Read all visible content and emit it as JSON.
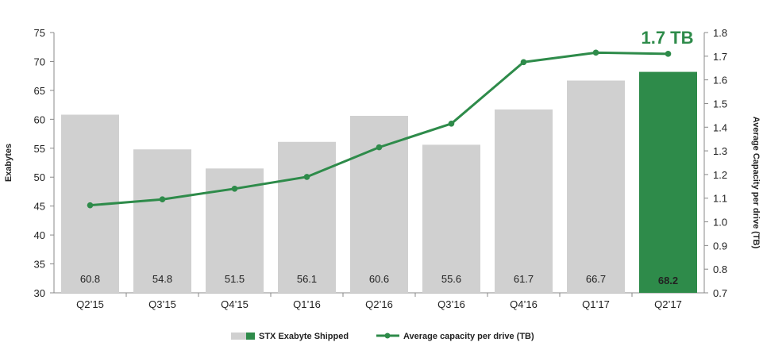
{
  "chart_data": {
    "type": "bar",
    "categories": [
      "Q2’15",
      "Q3’15",
      "Q4’15",
      "Q1’16",
      "Q2’16",
      "Q3’16",
      "Q4’16",
      "Q1’17",
      "Q2’17"
    ],
    "series": [
      {
        "name": "STX Exabyte Shipped",
        "type": "bar",
        "axis": "left",
        "values": [
          60.8,
          54.8,
          51.5,
          56.1,
          60.6,
          55.6,
          61.7,
          66.7,
          68.2
        ],
        "labels": [
          "60.8",
          "54.8",
          "51.5",
          "56.1",
          "60.6",
          "55.6",
          "61.7",
          "66.7",
          "68.2"
        ]
      },
      {
        "name": "Average capacity per drive (TB)",
        "type": "line",
        "axis": "right",
        "values": [
          1.07,
          1.095,
          1.14,
          1.19,
          1.315,
          1.415,
          1.675,
          1.715,
          1.71
        ]
      }
    ],
    "ylabel": "Exabytes",
    "ylabel_right": "Average Capacity per drive (TB)",
    "ylim": [
      30,
      75
    ],
    "ylim_right": [
      0.7,
      1.8
    ],
    "yticks": [
      "30",
      "35",
      "40",
      "45",
      "50",
      "55",
      "60",
      "65",
      "70",
      "75"
    ],
    "yticks_right": [
      "0.7",
      "0.8",
      "0.9",
      "1.0",
      "1.1",
      "1.2",
      "1.3",
      "1.4",
      "1.5",
      "1.6",
      "1.7",
      "1.8"
    ],
    "annotation": "1.7 TB",
    "highlight_index": 8,
    "legend_position": "bottom-center",
    "grid": false,
    "colors": {
      "bar": "#d0d0d0",
      "highlight": "#2e8b4a",
      "line": "#2e8b4a",
      "axis": "#888888",
      "text": "#222222"
    }
  }
}
